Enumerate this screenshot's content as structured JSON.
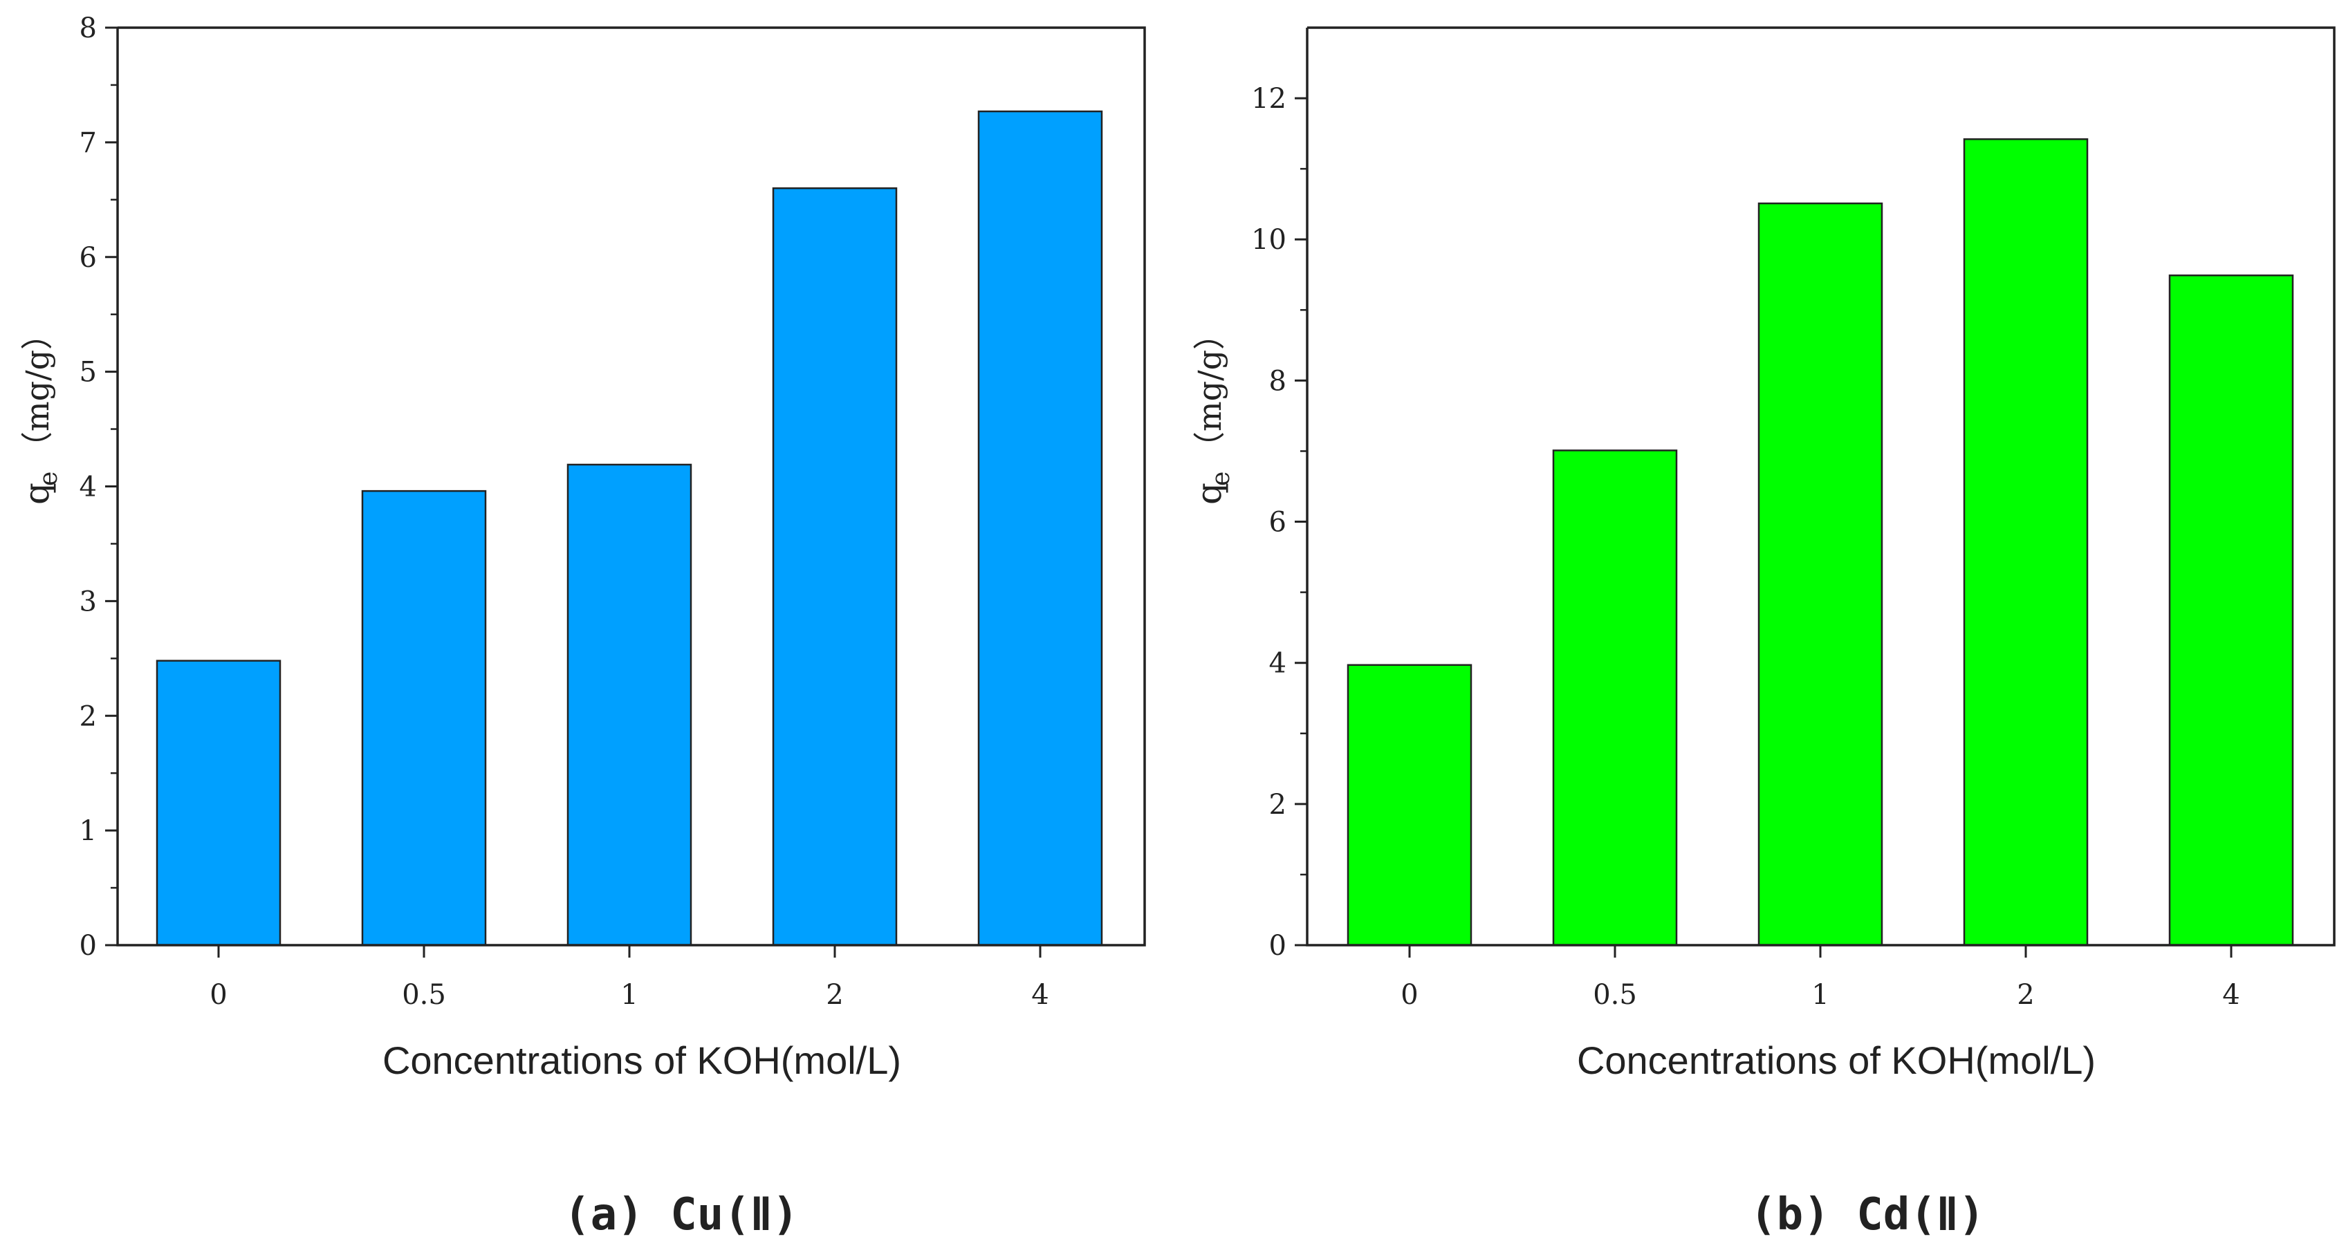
{
  "chart_data": [
    {
      "type": "bar",
      "categories": [
        "0",
        "0.5",
        "1",
        "2",
        "4"
      ],
      "values": [
        2.48,
        3.96,
        4.19,
        6.6,
        7.27
      ],
      "xlabel": "Concentrations of KOH(mol/L)",
      "ylabel_symbol": "q",
      "ylabel_subscript": "e",
      "ylabel_unit": "（mg/g）",
      "ylim": [
        0,
        8
      ],
      "yticks": [
        "0",
        "1",
        "2",
        "3",
        "4",
        "5",
        "6",
        "7",
        "8"
      ],
      "bar_color": "#00a0ff",
      "caption": "(a) Cu(Ⅱ)"
    },
    {
      "type": "bar",
      "categories": [
        "0",
        "0.5",
        "1",
        "2",
        "4"
      ],
      "values": [
        3.97,
        7.01,
        10.51,
        11.42,
        9.49
      ],
      "xlabel": "Concentrations of KOH(mol/L)",
      "ylabel_symbol": "q",
      "ylabel_subscript": "e",
      "ylabel_unit": "（mg/g）",
      "ylim": [
        0,
        13
      ],
      "yticks": [
        "0",
        "2",
        "4",
        "6",
        "8",
        "10",
        "12"
      ],
      "bar_color": "#00ff00",
      "caption": "(b) Cd(Ⅱ)"
    }
  ]
}
